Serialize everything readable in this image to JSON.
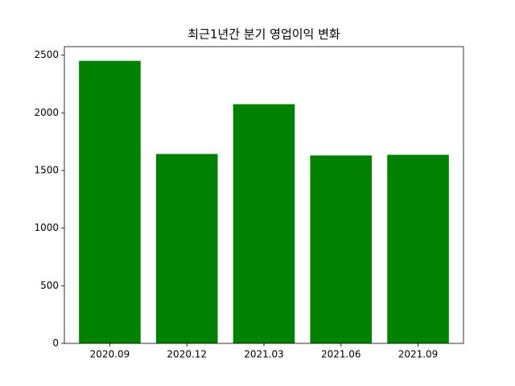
{
  "chart_data": {
    "type": "bar",
    "title": "최근1년간 분기 영업이익 변화",
    "categories": [
      "2020.09",
      "2020.12",
      "2021.03",
      "2021.06",
      "2021.09"
    ],
    "values": [
      2451,
      1643,
      2075,
      1630,
      1636
    ],
    "color": "#008000",
    "ylim": [
      0,
      2574
    ],
    "yticks": [
      0,
      500,
      1000,
      1500,
      2000,
      2500
    ],
    "grid": false
  }
}
